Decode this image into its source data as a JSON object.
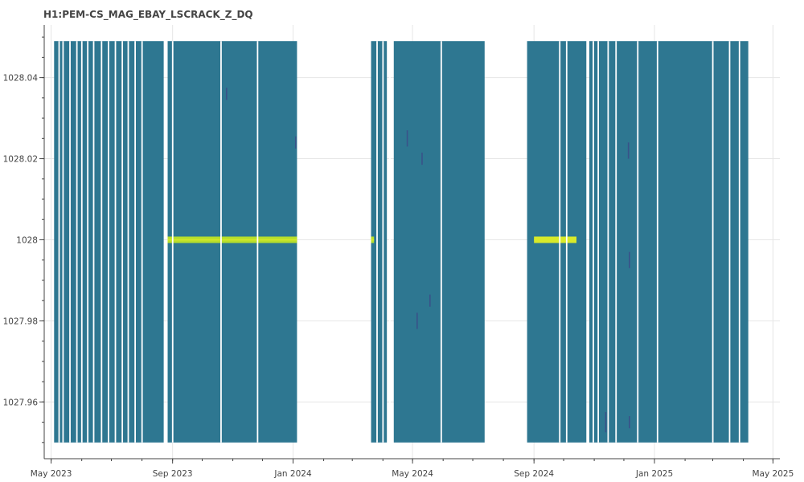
{
  "chart_data": {
    "type": "heatmap",
    "title": "H1:PEM-CS_MAG_EBAY_LSCRACK_Z_DQ",
    "xlabel": "",
    "ylabel": "",
    "x_ticks": [
      "May 2023",
      "Sep 2023",
      "Jan 2024",
      "May 2024",
      "Sep 2024",
      "Jan 2025",
      "May 2025"
    ],
    "x_tick_dates": [
      "2023-05-01",
      "2023-09-01",
      "2024-01-01",
      "2024-05-01",
      "2024-09-01",
      "2025-01-01",
      "2025-05-01"
    ],
    "xlim": [
      "2023-04-24",
      "2025-05-08"
    ],
    "y_ticks": [
      "1027.96",
      "1027.98",
      "1028",
      "1028.02",
      "1028.04"
    ],
    "y_tick_values": [
      1027.96,
      1027.98,
      1028.0,
      1028.02,
      1028.04
    ],
    "ylim": [
      1027.946,
      1028.053
    ],
    "data_y_range": [
      1027.95,
      1028.049
    ],
    "grid": true,
    "colors": {
      "background": "#2e7791",
      "band": "#b6de2b",
      "band_core": "#d8ea2a",
      "streak": "#3b4e88",
      "gap": "#ffffff"
    },
    "data_segments": [
      {
        "start": "2023-05-04",
        "end": "2023-08-23"
      },
      {
        "start": "2023-08-27",
        "end": "2024-01-05"
      },
      {
        "start": "2024-03-20",
        "end": "2024-04-05"
      },
      {
        "start": "2024-04-12",
        "end": "2024-07-13"
      },
      {
        "start": "2024-08-25",
        "end": "2024-10-24"
      },
      {
        "start": "2024-10-27",
        "end": "2025-04-06"
      }
    ],
    "gap_lines": [
      "2023-05-09",
      "2023-05-13",
      "2023-05-20",
      "2023-05-27",
      "2023-06-01",
      "2023-06-07",
      "2023-06-13",
      "2023-06-21",
      "2023-06-28",
      "2023-07-05",
      "2023-07-12",
      "2023-07-18",
      "2023-07-25",
      "2023-08-01",
      "2023-09-01",
      "2023-10-20",
      "2023-11-26",
      "2024-03-26",
      "2024-04-01",
      "2024-04-08",
      "2024-05-30",
      "2024-09-27",
      "2024-10-04",
      "2024-10-31",
      "2024-11-05",
      "2024-11-15",
      "2024-11-23",
      "2024-12-15",
      "2025-01-04",
      "2025-03-01",
      "2025-03-18",
      "2025-03-28"
    ],
    "bands": [
      {
        "y": 1028.0,
        "start": "2023-08-27",
        "end": "2024-01-05",
        "level": "bright"
      },
      {
        "y": 1028.0,
        "start": "2024-03-20",
        "end": "2024-03-23",
        "level": "bright"
      },
      {
        "y": 1028.0,
        "start": "2024-09-01",
        "end": "2024-10-14",
        "level": "brightest"
      }
    ],
    "streaks": [
      {
        "x": "2024-04-25",
        "y": 1028.025,
        "h": 0.004
      },
      {
        "x": "2024-05-05",
        "y": 1027.98,
        "h": 0.004
      },
      {
        "x": "2024-05-10",
        "y": 1028.02,
        "h": 0.003
      },
      {
        "x": "2024-05-18",
        "y": 1027.985,
        "h": 0.003
      },
      {
        "x": "2024-11-12",
        "y": 1027.955,
        "h": 0.005
      },
      {
        "x": "2024-12-05",
        "y": 1028.022,
        "h": 0.004
      },
      {
        "x": "2024-12-06",
        "y": 1027.955,
        "h": 0.003
      },
      {
        "x": "2024-12-06",
        "y": 1027.995,
        "h": 0.004
      },
      {
        "x": "2023-10-25",
        "y": 1028.036,
        "h": 0.003
      },
      {
        "x": "2024-01-03",
        "y": 1028.024,
        "h": 0.003
      }
    ]
  }
}
